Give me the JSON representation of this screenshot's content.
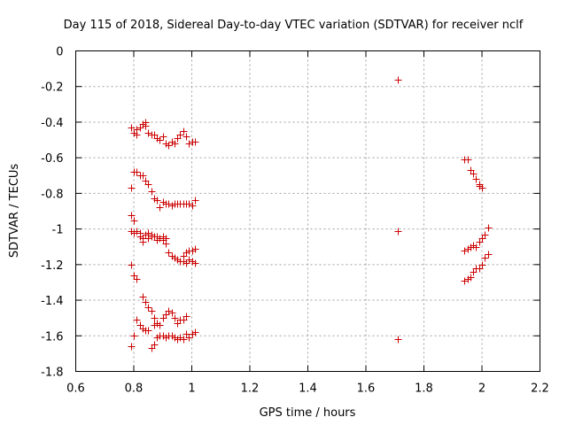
{
  "chart_data": {
    "type": "scatter",
    "title": "Day 115 of 2018, Sidereal Day-to-day VTEC variation (SDTVAR) for receiver nclf",
    "xlabel": "GPS time / hours",
    "ylabel": "SDTVAR / TECUs",
    "xlim": [
      0.6,
      2.2
    ],
    "ylim": [
      -1.8,
      0
    ],
    "grid": true,
    "marker": "+",
    "color": "#cc0000",
    "xticks": [
      0.6,
      0.8,
      1,
      1.2,
      1.4,
      1.6,
      1.8,
      2,
      2.2
    ],
    "xtick_labels": [
      "0.6",
      "0.8",
      "1",
      "1.2",
      "1.4",
      "1.6",
      "1.8",
      "2",
      "2.2"
    ],
    "yticks": [
      0,
      -0.2,
      -0.4,
      -0.6,
      -0.8,
      -1,
      -1.2,
      -1.4,
      -1.6,
      -1.8
    ],
    "ytick_labels": [
      "0",
      "-0.2",
      "-0.4",
      "-0.6",
      "-0.8",
      "-1",
      "-1.2",
      "-1.4",
      "-1.6",
      "-1.8"
    ],
    "points": [
      [
        0.79,
        -0.43
      ],
      [
        0.8,
        -0.46
      ],
      [
        0.81,
        -0.47
      ],
      [
        0.81,
        -0.44
      ],
      [
        0.82,
        -0.43
      ],
      [
        0.83,
        -0.41
      ],
      [
        0.84,
        -0.4
      ],
      [
        0.84,
        -0.42
      ],
      [
        0.85,
        -0.46
      ],
      [
        0.86,
        -0.47
      ],
      [
        0.87,
        -0.47
      ],
      [
        0.88,
        -0.49
      ],
      [
        0.89,
        -0.5
      ],
      [
        0.9,
        -0.48
      ],
      [
        0.91,
        -0.52
      ],
      [
        0.92,
        -0.53
      ],
      [
        0.93,
        -0.51
      ],
      [
        0.94,
        -0.52
      ],
      [
        0.95,
        -0.49
      ],
      [
        0.96,
        -0.47
      ],
      [
        0.97,
        -0.45
      ],
      [
        0.98,
        -0.48
      ],
      [
        0.99,
        -0.52
      ],
      [
        1.0,
        -0.51
      ],
      [
        1.01,
        -0.51
      ],
      [
        0.8,
        -0.68
      ],
      [
        0.81,
        -0.68
      ],
      [
        0.82,
        -0.7
      ],
      [
        0.83,
        -0.7
      ],
      [
        0.84,
        -0.73
      ],
      [
        0.85,
        -0.75
      ],
      [
        0.86,
        -0.79
      ],
      [
        0.87,
        -0.83
      ],
      [
        0.88,
        -0.84
      ],
      [
        0.89,
        -0.88
      ],
      [
        0.9,
        -0.85
      ],
      [
        0.91,
        -0.86
      ],
      [
        0.92,
        -0.86
      ],
      [
        0.93,
        -0.87
      ],
      [
        0.94,
        -0.86
      ],
      [
        0.95,
        -0.86
      ],
      [
        0.96,
        -0.86
      ],
      [
        0.97,
        -0.86
      ],
      [
        0.98,
        -0.86
      ],
      [
        0.99,
        -0.86
      ],
      [
        1.0,
        -0.87
      ],
      [
        1.01,
        -0.84
      ],
      [
        0.79,
        -0.77
      ],
      [
        0.79,
        -0.92
      ],
      [
        0.8,
        -0.95
      ],
      [
        0.79,
        -1.01
      ],
      [
        0.8,
        -1.02
      ],
      [
        0.81,
        -1.01
      ],
      [
        0.82,
        -1.02
      ],
      [
        0.82,
        -1.04
      ],
      [
        0.83,
        -1.05
      ],
      [
        0.83,
        -1.07
      ],
      [
        0.84,
        -1.03
      ],
      [
        0.85,
        -1.02
      ],
      [
        0.86,
        -1.03
      ],
      [
        0.87,
        -1.04
      ],
      [
        0.88,
        -1.04
      ],
      [
        0.89,
        -1.05
      ],
      [
        0.9,
        -1.06
      ],
      [
        0.91,
        -1.08
      ],
      [
        0.92,
        -1.13
      ],
      [
        0.93,
        -1.15
      ],
      [
        0.94,
        -1.16
      ],
      [
        0.95,
        -1.17
      ],
      [
        0.96,
        -1.18
      ],
      [
        0.97,
        -1.18
      ],
      [
        0.98,
        -1.19
      ],
      [
        0.99,
        -1.17
      ],
      [
        1.0,
        -1.18
      ],
      [
        1.01,
        -1.19
      ],
      [
        0.97,
        -1.15
      ],
      [
        0.98,
        -1.13
      ],
      [
        0.99,
        -1.12
      ],
      [
        1.0,
        -1.12
      ],
      [
        1.01,
        -1.11
      ],
      [
        0.85,
        -1.05
      ],
      [
        0.86,
        -1.04
      ],
      [
        0.88,
        -1.06
      ],
      [
        0.9,
        -1.04
      ],
      [
        0.91,
        -1.05
      ],
      [
        0.79,
        -1.2
      ],
      [
        0.8,
        -1.26
      ],
      [
        0.81,
        -1.28
      ],
      [
        0.81,
        -1.28
      ],
      [
        0.83,
        -1.38
      ],
      [
        0.84,
        -1.41
      ],
      [
        0.85,
        -1.44
      ],
      [
        0.86,
        -1.46
      ],
      [
        0.87,
        -1.5
      ],
      [
        0.88,
        -1.53
      ],
      [
        0.81,
        -1.51
      ],
      [
        0.82,
        -1.54
      ],
      [
        0.83,
        -1.56
      ],
      [
        0.84,
        -1.57
      ],
      [
        0.85,
        -1.57
      ],
      [
        0.87,
        -1.54
      ],
      [
        0.89,
        -1.54
      ],
      [
        0.9,
        -1.5
      ],
      [
        0.91,
        -1.48
      ],
      [
        0.92,
        -1.46
      ],
      [
        0.93,
        -1.47
      ],
      [
        0.94,
        -1.5
      ],
      [
        0.95,
        -1.53
      ],
      [
        0.96,
        -1.51
      ],
      [
        0.97,
        -1.51
      ],
      [
        0.98,
        -1.49
      ],
      [
        0.79,
        -1.66
      ],
      [
        0.8,
        -1.6
      ],
      [
        0.86,
        -1.67
      ],
      [
        0.87,
        -1.65
      ],
      [
        0.88,
        -1.61
      ],
      [
        0.89,
        -1.6
      ],
      [
        0.9,
        -1.6
      ],
      [
        0.91,
        -1.61
      ],
      [
        0.92,
        -1.6
      ],
      [
        0.93,
        -1.6
      ],
      [
        0.94,
        -1.61
      ],
      [
        0.95,
        -1.62
      ],
      [
        0.96,
        -1.61
      ],
      [
        0.97,
        -1.62
      ],
      [
        0.98,
        -1.59
      ],
      [
        0.99,
        -1.61
      ],
      [
        1.0,
        -1.59
      ],
      [
        1.01,
        -1.58
      ],
      [
        1.71,
        -0.16
      ],
      [
        1.71,
        -1.01
      ],
      [
        1.71,
        -1.62
      ],
      [
        1.94,
        -0.61
      ],
      [
        1.95,
        -0.61
      ],
      [
        1.96,
        -0.67
      ],
      [
        1.97,
        -0.69
      ],
      [
        1.98,
        -0.72
      ],
      [
        1.99,
        -0.75
      ],
      [
        1.99,
        -0.76
      ],
      [
        2.0,
        -0.77
      ],
      [
        1.94,
        -1.12
      ],
      [
        1.95,
        -1.11
      ],
      [
        1.96,
        -1.1
      ],
      [
        1.97,
        -1.09
      ],
      [
        1.98,
        -1.1
      ],
      [
        1.99,
        -1.07
      ],
      [
        2.0,
        -1.05
      ],
      [
        2.01,
        -1.03
      ],
      [
        2.02,
        -0.99
      ],
      [
        1.94,
        -1.29
      ],
      [
        1.95,
        -1.28
      ],
      [
        1.96,
        -1.27
      ],
      [
        1.97,
        -1.24
      ],
      [
        1.98,
        -1.22
      ],
      [
        1.99,
        -1.22
      ],
      [
        2.0,
        -1.2
      ],
      [
        2.01,
        -1.16
      ],
      [
        2.02,
        -1.14
      ]
    ]
  }
}
